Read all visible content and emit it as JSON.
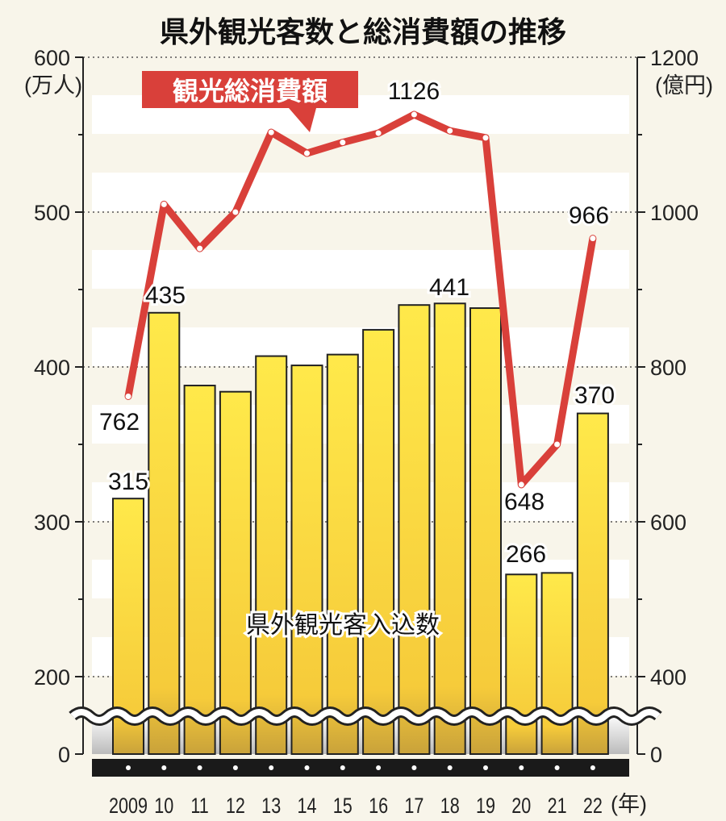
{
  "chart_data": {
    "type": "bar+line",
    "title": "県外観光客数と総消費額の推移",
    "categories": [
      "2009",
      "10",
      "11",
      "12",
      "13",
      "14",
      "15",
      "16",
      "17",
      "18",
      "19",
      "20",
      "21",
      "22"
    ],
    "x_unit": "(年)",
    "series": [
      {
        "name": "県外観光客入込数",
        "type": "bar",
        "axis": "left",
        "color": "#f7d535",
        "values": [
          315,
          435,
          388,
          384,
          407,
          401,
          408,
          424,
          440,
          441,
          438,
          266,
          267,
          370
        ],
        "labels_shown": {
          "0": "315",
          "1": "435",
          "9": "441",
          "11": "266",
          "13": "370"
        }
      },
      {
        "name": "観光総消費額",
        "type": "line",
        "axis": "right",
        "color": "#d9403a",
        "values": [
          762,
          1010,
          953,
          1000,
          1103,
          1076,
          1090,
          1102,
          1126,
          1105,
          1096,
          648,
          700,
          966
        ],
        "labels_shown": {
          "0": "762",
          "8": "1126",
          "11": "648",
          "13": "966"
        }
      }
    ],
    "left_axis": {
      "unit": "(万人)",
      "ticks": [
        "0",
        "200",
        "300",
        "400",
        "500",
        "600"
      ],
      "range": [
        0,
        600
      ],
      "break_below": 200
    },
    "right_axis": {
      "unit": "(億円)",
      "ticks": [
        "0",
        "400",
        "600",
        "800",
        "1000",
        "1200"
      ],
      "range": [
        0,
        1200
      ],
      "break_below": 400
    },
    "grid": "dotted horizontal"
  }
}
